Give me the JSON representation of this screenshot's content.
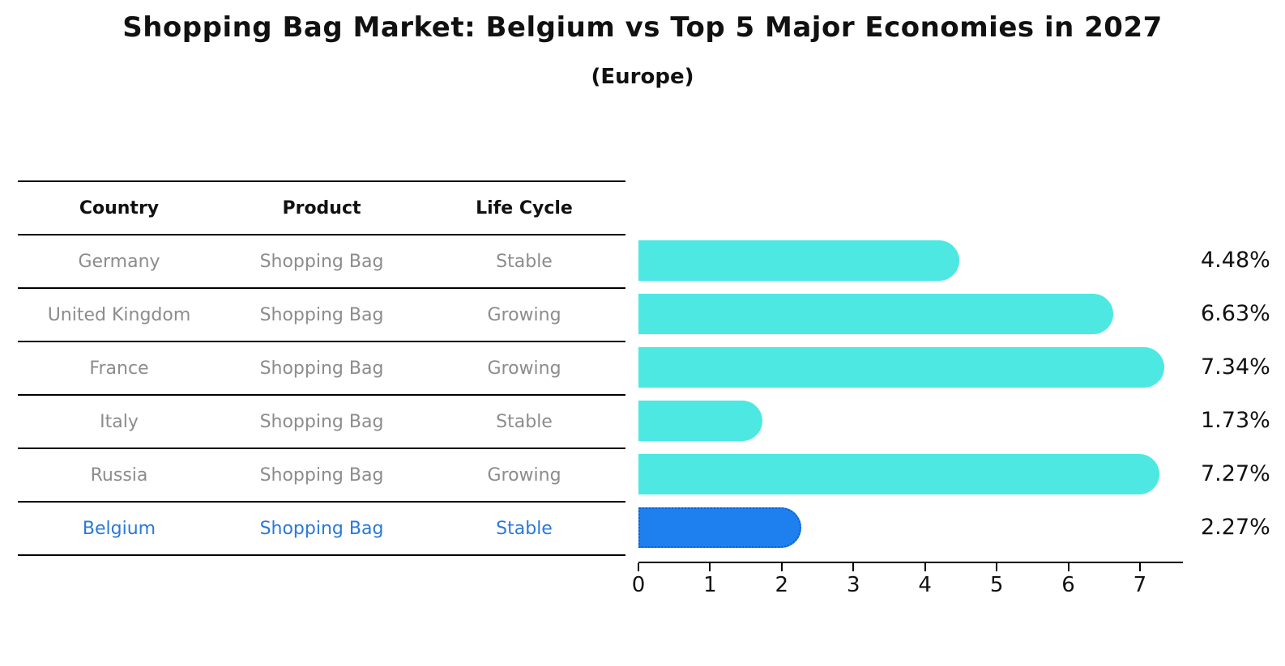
{
  "title": "Shopping Bag Market: Belgium vs Top 5 Major Economies in 2027",
  "subtitle": "(Europe)",
  "table": {
    "headers": [
      "Country",
      "Product",
      "Life Cycle"
    ],
    "rows": [
      {
        "country": "Germany",
        "product": "Shopping Bag",
        "life_cycle": "Stable"
      },
      {
        "country": "United Kingdom",
        "product": "Shopping Bag",
        "life_cycle": "Growing"
      },
      {
        "country": "France",
        "product": "Shopping Bag",
        "life_cycle": "Growing"
      },
      {
        "country": "Italy",
        "product": "Shopping Bag",
        "life_cycle": "Stable"
      },
      {
        "country": "Russia",
        "product": "Shopping Bag",
        "life_cycle": "Growing"
      },
      {
        "country": "Belgium",
        "product": "Shopping Bag",
        "life_cycle": "Stable"
      }
    ],
    "highlighted_row": "Belgium"
  },
  "chart_data": {
    "type": "bar",
    "orientation": "horizontal",
    "title": "Shopping Bag Market: Belgium vs Top 5 Major Economies in 2027 (Europe)",
    "categories": [
      "Germany",
      "United Kingdom",
      "France",
      "Italy",
      "Russia",
      "Belgium"
    ],
    "values": [
      4.48,
      6.63,
      7.34,
      1.73,
      7.27,
      2.27
    ],
    "value_labels": [
      "4.48%",
      "6.63%",
      "7.34%",
      "1.73%",
      "7.27%",
      "2.27%"
    ],
    "x_ticks": [
      0,
      1,
      2,
      3,
      4,
      5,
      6,
      7
    ],
    "xlim": [
      0,
      7.6
    ],
    "xlabel": "",
    "ylabel": "",
    "grid": false,
    "legend": false,
    "colors": {
      "bar_default": "#4de8e2",
      "bar_highlight": "#1e80ee",
      "bar_highlight_border": "#0d5cd0",
      "highlight_text": "#2979d8",
      "table_text": "#8c8c8c",
      "header_text": "#111111",
      "axis": "#000000",
      "background": "#ffffff"
    }
  }
}
